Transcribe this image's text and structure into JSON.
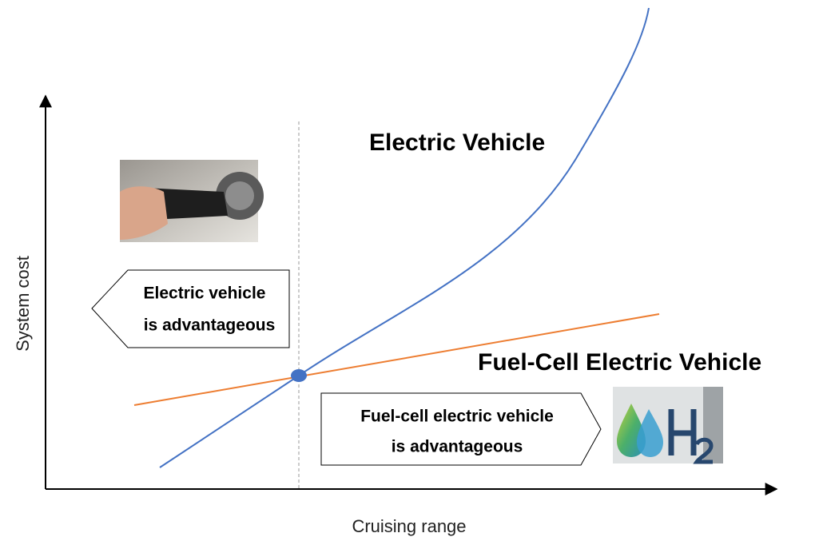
{
  "axes": {
    "y_label": "System cost",
    "x_label": "Cruising range"
  },
  "curves": {
    "ev_label": "Electric Vehicle",
    "fcev_label": "Fuel-Cell Electric Vehicle"
  },
  "regions": {
    "left": [
      "Electric vehicle",
      "is advantageous"
    ],
    "right": [
      "Fuel-cell electric vehicle",
      "is advantageous"
    ]
  }
}
